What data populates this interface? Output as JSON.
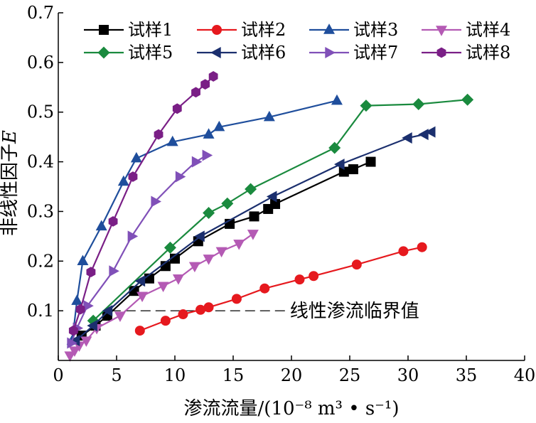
{
  "chart_data": {
    "type": "line",
    "title": "",
    "xlabel": "渗流流量/(10⁻⁸ m³ • s⁻¹)",
    "ylabel_main": "非线性因子",
    "ylabel_symbol": "E",
    "xlim": [
      0,
      40
    ],
    "ylim": [
      0,
      0.7
    ],
    "x_ticks": [
      0,
      5,
      10,
      15,
      20,
      25,
      30,
      35,
      40
    ],
    "y_ticks": [
      0.1,
      0.2,
      0.3,
      0.4,
      0.5,
      0.6,
      0.7
    ],
    "x_tick_labels": [
      "0",
      "5",
      "10",
      "15",
      "20",
      "25",
      "30",
      "35",
      "40"
    ],
    "y_tick_labels": [
      "0.1",
      "0.2",
      "0.3",
      "0.4",
      "0.5",
      "0.6",
      "0.7"
    ],
    "grid": false,
    "legend_position": "top",
    "reference_line": {
      "y": 0.1,
      "x_start": 4.5,
      "x_end": 19.5,
      "label": "线性渗流临界值",
      "style": "dashed"
    },
    "series": [
      {
        "name": "试样1",
        "color": "#000000",
        "marker": "square",
        "x": [
          2,
          3.2,
          4.2,
          6.5,
          7.8,
          9.2,
          10,
          12,
          14.7,
          16.8,
          18,
          18.6,
          24.5,
          25.3,
          26.8
        ],
        "y": [
          0.05,
          0.07,
          0.09,
          0.14,
          0.165,
          0.19,
          0.205,
          0.24,
          0.275,
          0.29,
          0.305,
          0.315,
          0.38,
          0.385,
          0.4
        ]
      },
      {
        "name": "试样2",
        "color": "#e6191e",
        "marker": "circle",
        "x": [
          7,
          9.2,
          10.7,
          12.2,
          12.9,
          15.3,
          17.7,
          20.7,
          21.9,
          25.6,
          29.6,
          31.2
        ],
        "y": [
          0.06,
          0.08,
          0.093,
          0.102,
          0.107,
          0.124,
          0.145,
          0.163,
          0.17,
          0.193,
          0.22,
          0.228
        ]
      },
      {
        "name": "试样3",
        "color": "#1f4e9c",
        "marker": "triangle-up",
        "x": [
          1.2,
          1.6,
          2.1,
          3.7,
          5.6,
          6.7,
          9.8,
          12.9,
          13.8,
          18.1,
          23.9
        ],
        "y": [
          0.04,
          0.12,
          0.2,
          0.27,
          0.36,
          0.407,
          0.44,
          0.455,
          0.47,
          0.49,
          0.523
        ]
      },
      {
        "name": "试样4",
        "color": "#b45ab4",
        "marker": "triangle-down",
        "x": [
          1.0,
          1.4,
          1.8,
          2.4,
          3.3,
          5.3,
          7.2,
          9.0,
          10.3,
          11.7,
          12.9,
          14.0,
          15.5,
          16.7
        ],
        "y": [
          0.01,
          0.02,
          0.03,
          0.04,
          0.065,
          0.09,
          0.13,
          0.15,
          0.165,
          0.19,
          0.205,
          0.22,
          0.235,
          0.255
        ]
      },
      {
        "name": "试样5",
        "color": "#1a8a3e",
        "marker": "diamond",
        "x": [
          3,
          9.6,
          12.9,
          14.5,
          16.5,
          23.7,
          26.4,
          30.9,
          35.1
        ],
        "y": [
          0.08,
          0.227,
          0.297,
          0.316,
          0.345,
          0.428,
          0.513,
          0.516,
          0.525
        ]
      },
      {
        "name": "试样6",
        "color": "#1b2f6e",
        "marker": "triangle-left",
        "x": [
          1.5,
          3.0,
          4.3,
          7.1,
          12.2,
          18.4,
          24.2,
          30.0,
          31.4,
          32.0
        ],
        "y": [
          0.04,
          0.07,
          0.1,
          0.16,
          0.25,
          0.33,
          0.395,
          0.448,
          0.455,
          0.46
        ]
      },
      {
        "name": "试样7",
        "color": "#8050b8",
        "marker": "triangle-right",
        "x": [
          1.1,
          1.6,
          2.5,
          4.7,
          6.3,
          8.3,
          10.4,
          11.8,
          12.7
        ],
        "y": [
          0.035,
          0.065,
          0.11,
          0.18,
          0.25,
          0.32,
          0.37,
          0.4,
          0.413
        ]
      },
      {
        "name": "试样8",
        "color": "#7a1f86",
        "marker": "hexagon",
        "x": [
          1.3,
          1.9,
          2.8,
          4.7,
          6.4,
          8.6,
          10.2,
          11.8,
          12.6,
          13.3
        ],
        "y": [
          0.06,
          0.103,
          0.178,
          0.28,
          0.37,
          0.455,
          0.507,
          0.54,
          0.556,
          0.572
        ]
      }
    ]
  }
}
